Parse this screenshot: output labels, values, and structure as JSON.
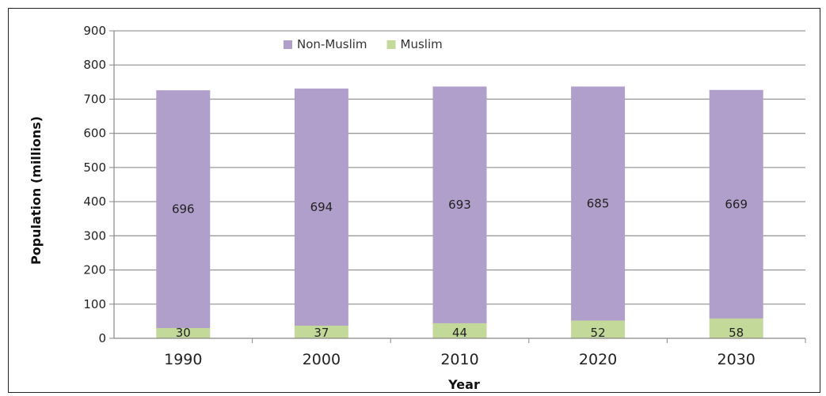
{
  "chart_data": {
    "type": "bar",
    "stacked": true,
    "categories": [
      "1990",
      "2000",
      "2010",
      "2020",
      "2030"
    ],
    "series": [
      {
        "name": "Muslim",
        "values": [
          30,
          37,
          44,
          52,
          58
        ],
        "color": "#c3d99a"
      },
      {
        "name": "Non-Muslim",
        "values": [
          696,
          694,
          693,
          685,
          669
        ],
        "color": "#b09fcb"
      }
    ],
    "legend_order": [
      "Non-Muslim",
      "Muslim"
    ],
    "legend_position": "top-center",
    "xlabel": "Year",
    "ylabel": "Population (millions)",
    "ylim": [
      0,
      900
    ],
    "yticks": [
      0,
      100,
      200,
      300,
      400,
      500,
      600,
      700,
      800,
      900
    ],
    "grid": "horizontal",
    "colors": {
      "grid": "#9a9a9a",
      "axis": "#888888",
      "text": "#222222"
    }
  }
}
